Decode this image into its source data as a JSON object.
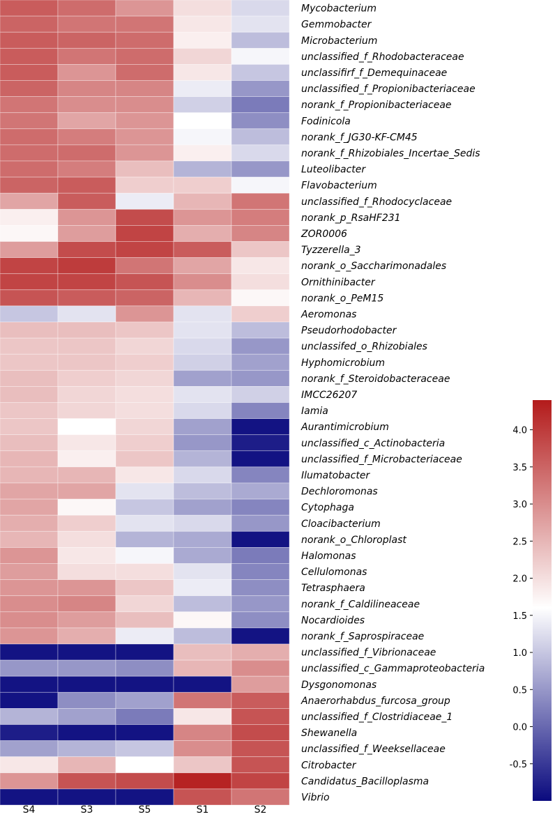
{
  "chart_data": {
    "type": "heatmap",
    "title": "",
    "columns": [
      "S4",
      "S3",
      "S5",
      "S1",
      "S2"
    ],
    "rows": [
      "Mycobacterium",
      "Gemmobacter",
      "Microbacterium",
      "unclassified_f_Rhodobacteraceae",
      "unclassifirf_f_Demequinaceae",
      "unclassified_f_Propionibacteriaceae",
      "norank_f_Propionibacteriaceae",
      "Fodinicola",
      "norank_f_JG30-KF-CM45",
      "norank_f_Rhizobiales_Incertae_Sedis",
      "Luteolibacter",
      "Flavobacterium",
      "unclassified_f_Rhodocyclaceae",
      "norank_p_RsaHF231",
      "ZOR0006",
      "Tyzzerella_3",
      "norank_o_Saccharimonadales",
      "Ornithinibacter",
      "norank_o_PeM15",
      "Aeromonas",
      "Pseudorhodobacter",
      "unclassifed_o_Rhizobiales",
      "Hyphomicrobium",
      "norank_f_Steroidobacteraceae",
      "IMCC26207",
      "Iamia",
      "Aurantimicrobium",
      "unclassified_c_Actinobacteria",
      "unclassified_f_Microbacteriaceae",
      "Ilumatobacter",
      "Dechloromonas",
      "Cytophaga",
      "Cloacibacterium",
      "norank_o_Chloroplast",
      "Halomonas",
      "Cellulomonas",
      "Tetrasphaera",
      "norank_f_Caldilineaceae",
      "Nocardioides",
      "norank_f_Saprospiraceae",
      "unclassified_f_Vibrionaceae",
      "unclassified_c_Gammaproteobacteria",
      "Dysgonomonas",
      "Anaerorhabdus_furcosa_group",
      "unclassified_f_Clostridiaceae_1",
      "Shewanella",
      "unclassified_f_Weeksellaceae",
      "Citrobacter",
      "Candidatus_Bacilloplasma",
      "Vibrio"
    ],
    "values": [
      [
        3.6,
        3.4,
        2.9,
        2.0,
        1.2
      ],
      [
        3.5,
        3.3,
        3.3,
        1.9,
        1.3
      ],
      [
        3.6,
        3.5,
        3.4,
        1.8,
        0.9
      ],
      [
        3.6,
        3.3,
        3.4,
        2.1,
        1.5
      ],
      [
        3.6,
        2.9,
        3.4,
        1.9,
        1.0
      ],
      [
        3.5,
        3.1,
        3.1,
        1.4,
        0.5
      ],
      [
        3.3,
        3.0,
        3.0,
        1.1,
        0.2
      ],
      [
        3.3,
        2.7,
        2.9,
        1.6,
        0.4
      ],
      [
        3.4,
        3.2,
        2.9,
        1.5,
        0.9
      ],
      [
        3.4,
        3.4,
        2.9,
        1.8,
        1.2
      ],
      [
        3.4,
        3.2,
        2.4,
        0.8,
        0.5
      ],
      [
        3.5,
        3.6,
        2.2,
        2.2,
        1.5
      ],
      [
        2.7,
        3.6,
        1.4,
        2.5,
        3.3
      ],
      [
        1.8,
        2.9,
        3.8,
        2.9,
        3.2
      ],
      [
        1.7,
        2.8,
        3.9,
        2.6,
        3.1
      ],
      [
        2.8,
        3.8,
        3.9,
        3.6,
        2.3
      ],
      [
        3.9,
        4.0,
        3.3,
        2.7,
        1.9
      ],
      [
        3.9,
        3.9,
        3.7,
        3.0,
        2.0
      ],
      [
        3.7,
        3.6,
        3.5,
        2.5,
        1.7
      ],
      [
        1.0,
        1.3,
        2.9,
        1.3,
        2.2
      ],
      [
        2.4,
        2.4,
        2.3,
        1.3,
        0.9
      ],
      [
        2.3,
        2.3,
        2.1,
        1.2,
        0.5
      ],
      [
        2.3,
        2.3,
        2.2,
        1.1,
        0.6
      ],
      [
        2.4,
        2.2,
        2.1,
        0.6,
        0.5
      ],
      [
        2.4,
        2.1,
        2.0,
        1.3,
        1.1
      ],
      [
        2.3,
        2.1,
        2.0,
        1.2,
        0.3
      ],
      [
        2.3,
        1.6,
        2.1,
        0.6,
        -0.9
      ],
      [
        2.4,
        1.9,
        2.2,
        0.5,
        -0.8
      ],
      [
        2.5,
        1.8,
        2.3,
        0.8,
        -0.9
      ],
      [
        2.5,
        2.5,
        1.9,
        1.2,
        0.3
      ],
      [
        2.7,
        2.7,
        1.3,
        0.9,
        0.7
      ],
      [
        2.7,
        1.7,
        1.0,
        0.6,
        0.3
      ],
      [
        2.6,
        2.2,
        1.3,
        1.2,
        0.5
      ],
      [
        2.5,
        2.0,
        0.8,
        0.7,
        -0.9
      ],
      [
        2.9,
        1.9,
        1.5,
        0.7,
        0.2
      ],
      [
        2.8,
        2.0,
        2.0,
        1.3,
        0.3
      ],
      [
        2.9,
        2.9,
        2.3,
        1.4,
        0.4
      ],
      [
        3.0,
        3.1,
        2.1,
        0.9,
        0.5
      ],
      [
        3.0,
        2.8,
        2.4,
        1.7,
        0.4
      ],
      [
        2.9,
        2.6,
        1.4,
        0.9,
        -0.9
      ],
      [
        -0.9,
        -0.9,
        -0.9,
        2.4,
        2.6
      ],
      [
        0.5,
        0.5,
        0.4,
        2.5,
        3.0
      ],
      [
        -0.9,
        -0.9,
        -0.9,
        -0.9,
        2.8
      ],
      [
        -0.9,
        0.4,
        0.6,
        3.3,
        3.6
      ],
      [
        0.8,
        0.6,
        0.2,
        1.9,
        3.7
      ],
      [
        -0.8,
        -0.9,
        -0.9,
        3.1,
        3.8
      ],
      [
        0.6,
        0.8,
        1.0,
        3.0,
        3.7
      ],
      [
        1.9,
        2.5,
        1.6,
        2.3,
        3.7
      ],
      [
        2.9,
        3.7,
        3.8,
        4.3,
        3.9
      ],
      [
        -0.9,
        -0.9,
        -0.9,
        3.7,
        3.3
      ]
    ],
    "colorbar": {
      "min": -1.0,
      "max": 4.4,
      "ticks": [
        -0.5,
        0.0,
        0.5,
        1.0,
        1.5,
        2.0,
        2.5,
        3.0,
        3.5,
        4.0
      ],
      "tick_labels": [
        "-0.5",
        "0.0",
        "0.5",
        "1.0",
        "1.5",
        "2.0",
        "2.5",
        "3.0",
        "3.5",
        "4.0"
      ],
      "colors": {
        "low": "#0a0a7e",
        "mid": "#ffffff",
        "high": "#b31b1b"
      },
      "mid_value": 1.6
    },
    "xlabel": "",
    "ylabel": "",
    "grid": true,
    "legend": "right"
  }
}
